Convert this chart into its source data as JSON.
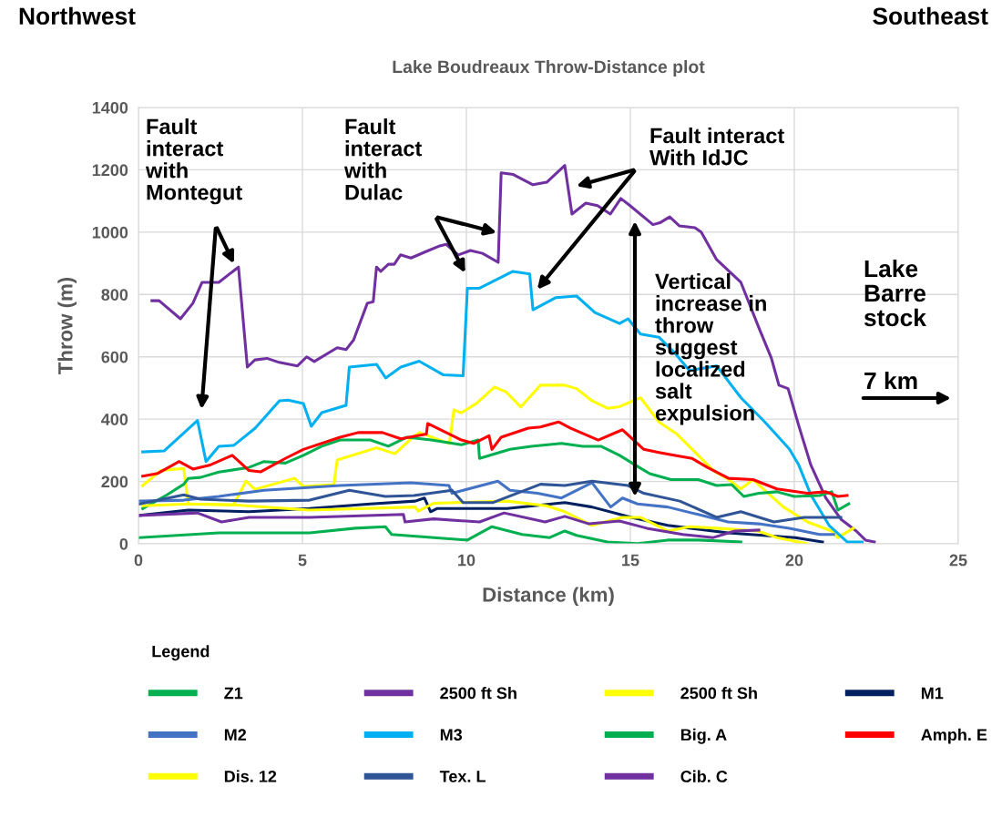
{
  "chart_data": {
    "type": "line",
    "title": "Lake Boudreaux Throw-Distance plot",
    "xlabel": "Distance (km)",
    "ylabel": "Throw (m)",
    "xlim": [
      0,
      25
    ],
    "xticks": [
      0,
      5,
      10,
      15,
      20,
      25
    ],
    "ylim": [
      0,
      1400
    ],
    "yticks": [
      0,
      200,
      400,
      600,
      800,
      1000,
      1200,
      1400
    ],
    "grid": true,
    "legend": "bottom",
    "legend_title": "Legend",
    "marker": "none",
    "line_style": "solid",
    "annotations": [
      "Northwest",
      "Southeast",
      "Fault\ninteract\nwith\nMontegut",
      "Fault\ninteract\nwith\nDulac",
      "Fault interact\nWith IdJC",
      "Vertical\nincrease in\nthrow\nsuggest\nlocalized\nsalt\nexpulsion",
      "Lake\nBarre\nstock",
      "7 km"
    ],
    "series": [
      {
        "name": "Z1",
        "color": "#00b050",
        "x": [
          0.04,
          2.45,
          5.22,
          6.61,
          7.53,
          7.72,
          10.03,
          10.78,
          11.7,
          12.54,
          13.0,
          13.36,
          14.3,
          15.22,
          16.14,
          17.07,
          18.37
        ],
        "values": [
          20,
          35,
          35,
          50,
          55,
          30,
          12,
          55,
          30,
          20,
          41,
          27,
          6,
          1,
          12,
          12,
          6
        ]
      },
      {
        "name": "2500 ft Sh",
        "color": "#7030a0",
        "x": [
          0.41,
          0.63,
          1.28,
          1.66,
          1.94,
          2.45,
          3.05,
          3.32,
          3.55,
          3.92,
          4.29,
          4.85,
          5.13,
          5.36,
          6.06,
          6.33,
          6.56,
          6.98,
          7.16,
          7.26,
          7.39,
          7.62,
          7.8,
          7.99,
          8.31,
          8.73,
          9.19,
          9.38,
          9.75,
          10.12,
          10.49,
          10.97,
          11.06,
          11.43,
          12.03,
          12.45,
          13.0,
          13.22,
          13.64,
          14.0,
          14.39,
          14.71,
          14.99,
          15.69,
          15.9,
          16.2,
          16.5,
          16.97,
          17.16,
          17.63,
          18.37,
          18.92,
          19.3,
          19.53,
          19.81,
          20.13,
          20.5,
          20.96,
          21.42,
          21.89,
          22.17,
          22.44
        ],
        "values": [
          780,
          780,
          722,
          772,
          839,
          839,
          888,
          567,
          590,
          595,
          582,
          571,
          600,
          585,
          629,
          623,
          654,
          772,
          777,
          888,
          874,
          897,
          897,
          927,
          917,
          936,
          956,
          961,
          927,
          941,
          932,
          903,
          1190,
          1185,
          1152,
          1160,
          1214,
          1058,
          1093,
          1085,
          1058,
          1108,
          1085,
          1024,
          1030,
          1049,
          1020,
          1014,
          1000,
          912,
          839,
          693,
          596,
          509,
          498,
          381,
          254,
          147,
          79,
          41,
          12,
          6
        ]
      },
      {
        "name": "2500 ft Sh",
        "color": "#ffff00",
        "x": [
          0.13,
          0.68,
          1.38,
          1.52,
          2.9,
          3.28,
          3.55,
          4.76,
          5.03,
          5.96,
          6.06,
          7.26,
          7.82,
          8.37,
          8.56,
          9.48,
          9.62,
          9.84,
          10.3,
          10.86,
          11.2,
          11.66,
          12.26,
          13.0,
          13.36,
          13.83,
          14.3,
          14.67,
          15.31,
          15.87,
          16.42,
          17.07,
          17.53,
          18.0,
          18.37,
          18.74,
          19.67,
          20.4,
          21.14,
          21.33,
          21.8
        ],
        "values": [
          187,
          235,
          242,
          128,
          125,
          201,
          175,
          210,
          184,
          190,
          269,
          308,
          289,
          342,
          357,
          322,
          430,
          420,
          450,
          503,
          488,
          439,
          509,
          509,
          498,
          459,
          435,
          440,
          469,
          391,
          352,
          284,
          235,
          206,
          176,
          206,
          118,
          70,
          41,
          20,
          50
        ]
      },
      {
        "name": "M1",
        "color": "#002060",
        "x": [
          0.04,
          1.52,
          3.37,
          5.22,
          7.07,
          8.44,
          8.72,
          8.91,
          9.1,
          9.85,
          11.24,
          13.0,
          13.83,
          15.03,
          16.14,
          17.98,
          20.03,
          20.86
        ],
        "values": [
          91,
          108,
          103,
          113,
          128,
          137,
          147,
          103,
          113,
          113,
          113,
          132,
          118,
          85,
          59,
          35,
          20,
          6
        ]
      },
      {
        "name": "M2",
        "color": "#4472c4",
        "x": [
          0.04,
          1.38,
          2.45,
          3.83,
          6.15,
          8.31,
          9.47,
          9.56,
          10.96,
          11.33,
          12.17,
          12.9,
          13.83,
          14.4,
          14.76,
          15.22,
          16.14,
          17.07,
          17.98,
          18.92,
          19.85,
          20.77,
          21.2
        ],
        "values": [
          137,
          140,
          152,
          172,
          187,
          196,
          187,
          162,
          201,
          172,
          162,
          147,
          196,
          118,
          147,
          128,
          118,
          94,
          70,
          64,
          50,
          30,
          30
        ]
      },
      {
        "name": "M3",
        "color": "#00b0f0",
        "x": [
          0.13,
          0.78,
          1.8,
          2.06,
          2.45,
          2.91,
          3.56,
          4.3,
          4.56,
          5.03,
          5.27,
          5.59,
          6.33,
          6.43,
          7.26,
          7.54,
          8.0,
          8.56,
          9.3,
          9.9,
          10.03,
          10.4,
          11.42,
          11.93,
          12.03,
          12.73,
          13.36,
          13.92,
          14.67,
          14.93,
          15.31,
          15.87,
          16.33,
          16.8,
          17.63,
          18.37,
          19.1,
          19.85,
          20.13,
          20.5,
          21.06,
          21.61,
          22.07
        ],
        "values": [
          295,
          298,
          396,
          264,
          313,
          316,
          371,
          459,
          461,
          450,
          377,
          421,
          444,
          567,
          576,
          532,
          567,
          586,
          542,
          539,
          820,
          820,
          874,
          866,
          751,
          790,
          795,
          742,
          707,
          722,
          673,
          663,
          615,
          556,
          571,
          469,
          391,
          304,
          254,
          158,
          59,
          6,
          6
        ]
      },
      {
        "name": "Big. A",
        "color": "#00b050",
        "x": [
          0.13,
          0.87,
          1.38,
          1.52,
          1.89,
          2.45,
          3.37,
          3.83,
          4.48,
          5.03,
          5.59,
          6.15,
          7.07,
          7.62,
          8.19,
          8.93,
          9.85,
          10.36,
          10.4,
          11.33,
          11.98,
          12.9,
          13.55,
          14.1,
          14.67,
          15.13,
          15.59,
          16.24,
          17.07,
          17.63,
          18.09,
          18.46,
          18.92,
          19.47,
          20.0,
          20.77,
          21.14,
          21.33,
          21.66
        ],
        "values": [
          113,
          157,
          191,
          210,
          213,
          230,
          245,
          264,
          259,
          284,
          313,
          333,
          333,
          313,
          342,
          333,
          318,
          333,
          274,
          303,
          313,
          322,
          313,
          313,
          284,
          254,
          225,
          206,
          206,
          187,
          190,
          152,
          162,
          167,
          152,
          155,
          167,
          108,
          128
        ]
      },
      {
        "name": "Amph. E",
        "color": "#ff0000",
        "x": [
          0.13,
          0.59,
          1.24,
          1.66,
          2.16,
          2.86,
          3.37,
          3.73,
          4.48,
          5.03,
          6.15,
          6.7,
          7.44,
          8.0,
          8.78,
          8.82,
          9.85,
          10.22,
          10.69,
          10.78,
          11.06,
          11.89,
          12.26,
          12.81,
          13.18,
          14.02,
          14.76,
          15.41,
          15.87,
          16.33,
          16.88,
          17.35,
          18.0,
          18.74,
          19.47,
          20.4,
          20.96,
          21.33,
          21.61
        ],
        "values": [
          217,
          226,
          264,
          240,
          252,
          284,
          235,
          231,
          274,
          303,
          342,
          357,
          357,
          337,
          352,
          386,
          333,
          322,
          347,
          303,
          342,
          371,
          375,
          391,
          371,
          333,
          366,
          303,
          293,
          284,
          274,
          245,
          210,
          206,
          176,
          162,
          167,
          152,
          155
        ]
      },
      {
        "name": "Dis. 12",
        "color": "#ffff00",
        "x": [
          0.13,
          1.52,
          2.9,
          5.22,
          8.44,
          8.53,
          9.0,
          11.24,
          12.44,
          13.0,
          13.83,
          14.76,
          15.3,
          16.14,
          16.8,
          17.63,
          18.9,
          19.47,
          20.4
        ],
        "values": [
          122,
          128,
          125,
          108,
          118,
          105,
          130,
          137,
          122,
          103,
          59,
          85,
          85,
          41,
          55,
          50,
          41,
          20,
          0
        ]
      },
      {
        "name": "Tex. L",
        "color": "#2f5597",
        "x": [
          0.04,
          1.38,
          1.89,
          3.37,
          5.22,
          6.43,
          7.53,
          8.4,
          9.56,
          9.9,
          10.8,
          12.26,
          13.0,
          13.83,
          14.93,
          15.41,
          16.51,
          17.63,
          18.37,
          19.38,
          20.3,
          21.42
        ],
        "values": [
          128,
          157,
          143,
          137,
          140,
          172,
          152,
          155,
          172,
          132,
          132,
          191,
          187,
          201,
          187,
          162,
          137,
          85,
          103,
          70,
          85,
          85
        ]
      },
      {
        "name": "Cib. C",
        "color": "#7030a0",
        "x": [
          0.04,
          1.8,
          2.53,
          3.37,
          5.22,
          8.08,
          8.13,
          9.0,
          10.4,
          11.15,
          12.4,
          13.0,
          13.74,
          14.67,
          15.5,
          16.6,
          17.53,
          18.18,
          18.92
        ],
        "values": [
          91,
          99,
          70,
          85,
          85,
          94,
          70,
          80,
          70,
          99,
          70,
          88,
          64,
          73,
          50,
          30,
          20,
          41,
          44
        ]
      }
    ]
  }
}
